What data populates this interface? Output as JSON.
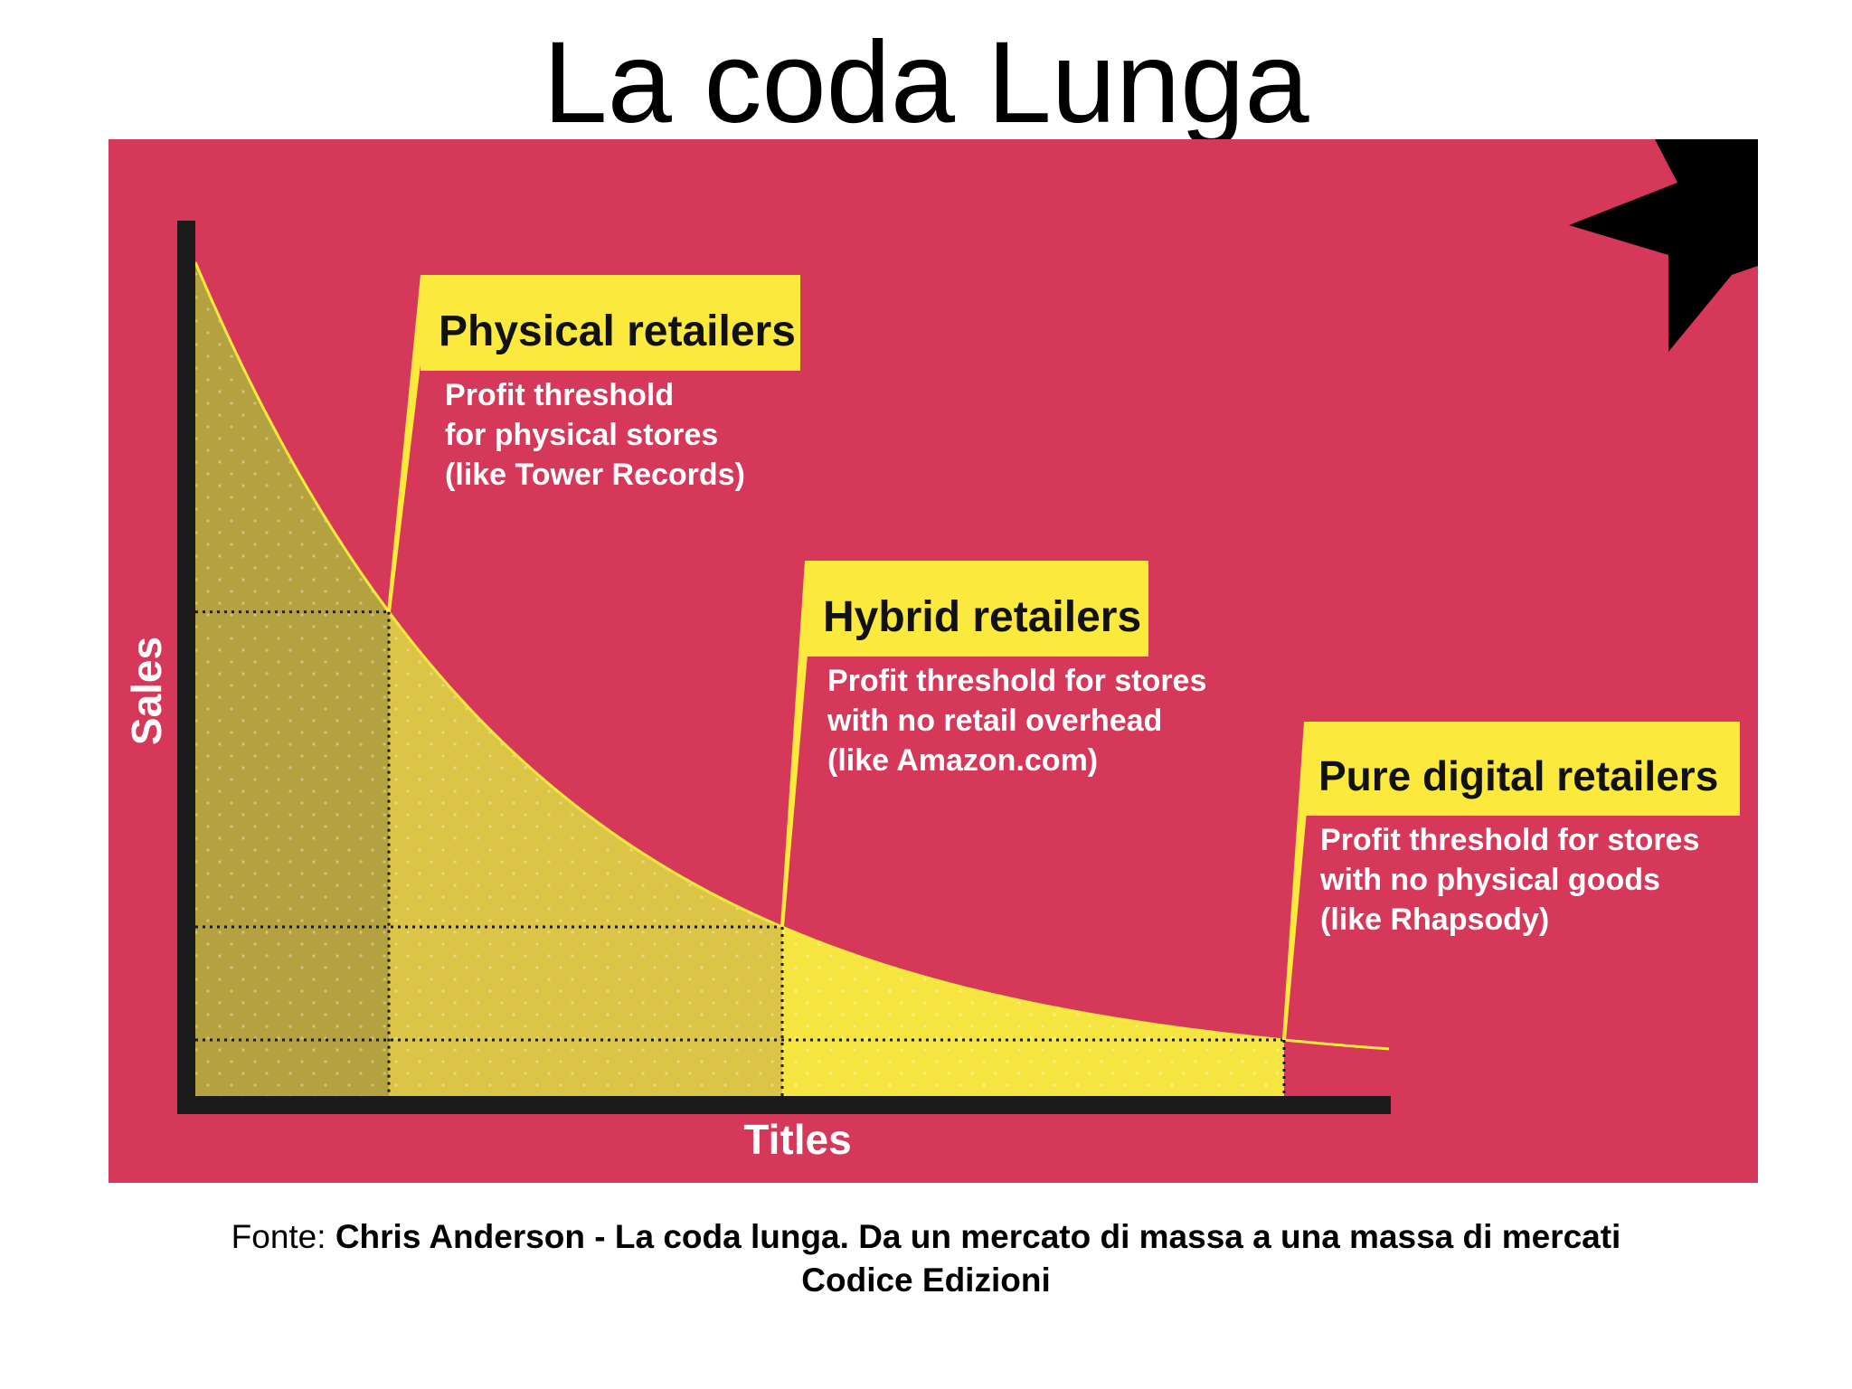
{
  "slide": {
    "title": "La coda Lunga",
    "source_prefix": "Fonte:",
    "source_title": "Chris Anderson - La coda lunga. Da un mercato di massa a una massa di mercati",
    "source_publisher": "Codice Edizioni"
  },
  "colors": {
    "background": "#d6385a",
    "curve_fill": "#f6e541",
    "curve_fill_mid": "#dcc446",
    "curve_fill_dark": "#b3a23f",
    "callout_box": "#fbe93e",
    "axis": "#1b1b1b",
    "white_text": "#ffffff",
    "star": "#000000"
  },
  "chart_data": {
    "type": "area",
    "title": "",
    "xlabel": "Titles",
    "ylabel": "Sales",
    "curve": "decreasing power-law (long tail)",
    "thresholds": [
      {
        "name": "Physical retailers",
        "description": [
          "Profit threshold",
          "for physical stores",
          "(like Tower Records)"
        ]
      },
      {
        "name": "Hybrid retailers",
        "description": [
          "Profit threshold for stores",
          "with no retail overhead",
          "(like Amazon.com)"
        ]
      },
      {
        "name": "Pure digital retailers",
        "description": [
          "Profit threshold for stores",
          "with no physical goods",
          "(like Rhapsody)"
        ]
      }
    ],
    "grid": false,
    "legend": "none"
  }
}
